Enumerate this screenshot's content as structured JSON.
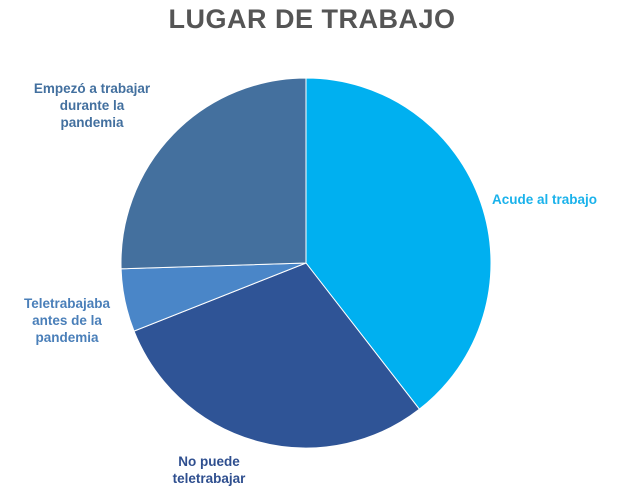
{
  "chart_data": {
    "type": "pie",
    "title": "LUGAR DE TRABAJO",
    "slices": [
      {
        "label": "Acude al trabajo",
        "value": 39.5,
        "color": "#00b0f0"
      },
      {
        "label": "No puede teletrabajar",
        "value": 29.5,
        "color": "#2f5496"
      },
      {
        "label": "Teletrabajaba antes de la pandemia",
        "value": 5.5,
        "color": "#4a86c8"
      },
      {
        "label": "Empezó a trabajar durante la pandemia",
        "value": 25.5,
        "color": "#44709e"
      }
    ],
    "label_colors": {
      "acude": "#1ab2eb",
      "no_puede": "#2f4f8f",
      "teletrabajaba": "#4a7fb9",
      "empezo": "#43709f"
    },
    "label_lines": {
      "acude": [
        "Acude al trabajo"
      ],
      "no_puede": [
        "No puede",
        "teletrabajar"
      ],
      "teletrabajaba": [
        "Teletrabajaba",
        "antes de la",
        "pandemia"
      ],
      "empezo": [
        "Empezó a trabajar",
        "durante la",
        "pandemia"
      ]
    }
  }
}
